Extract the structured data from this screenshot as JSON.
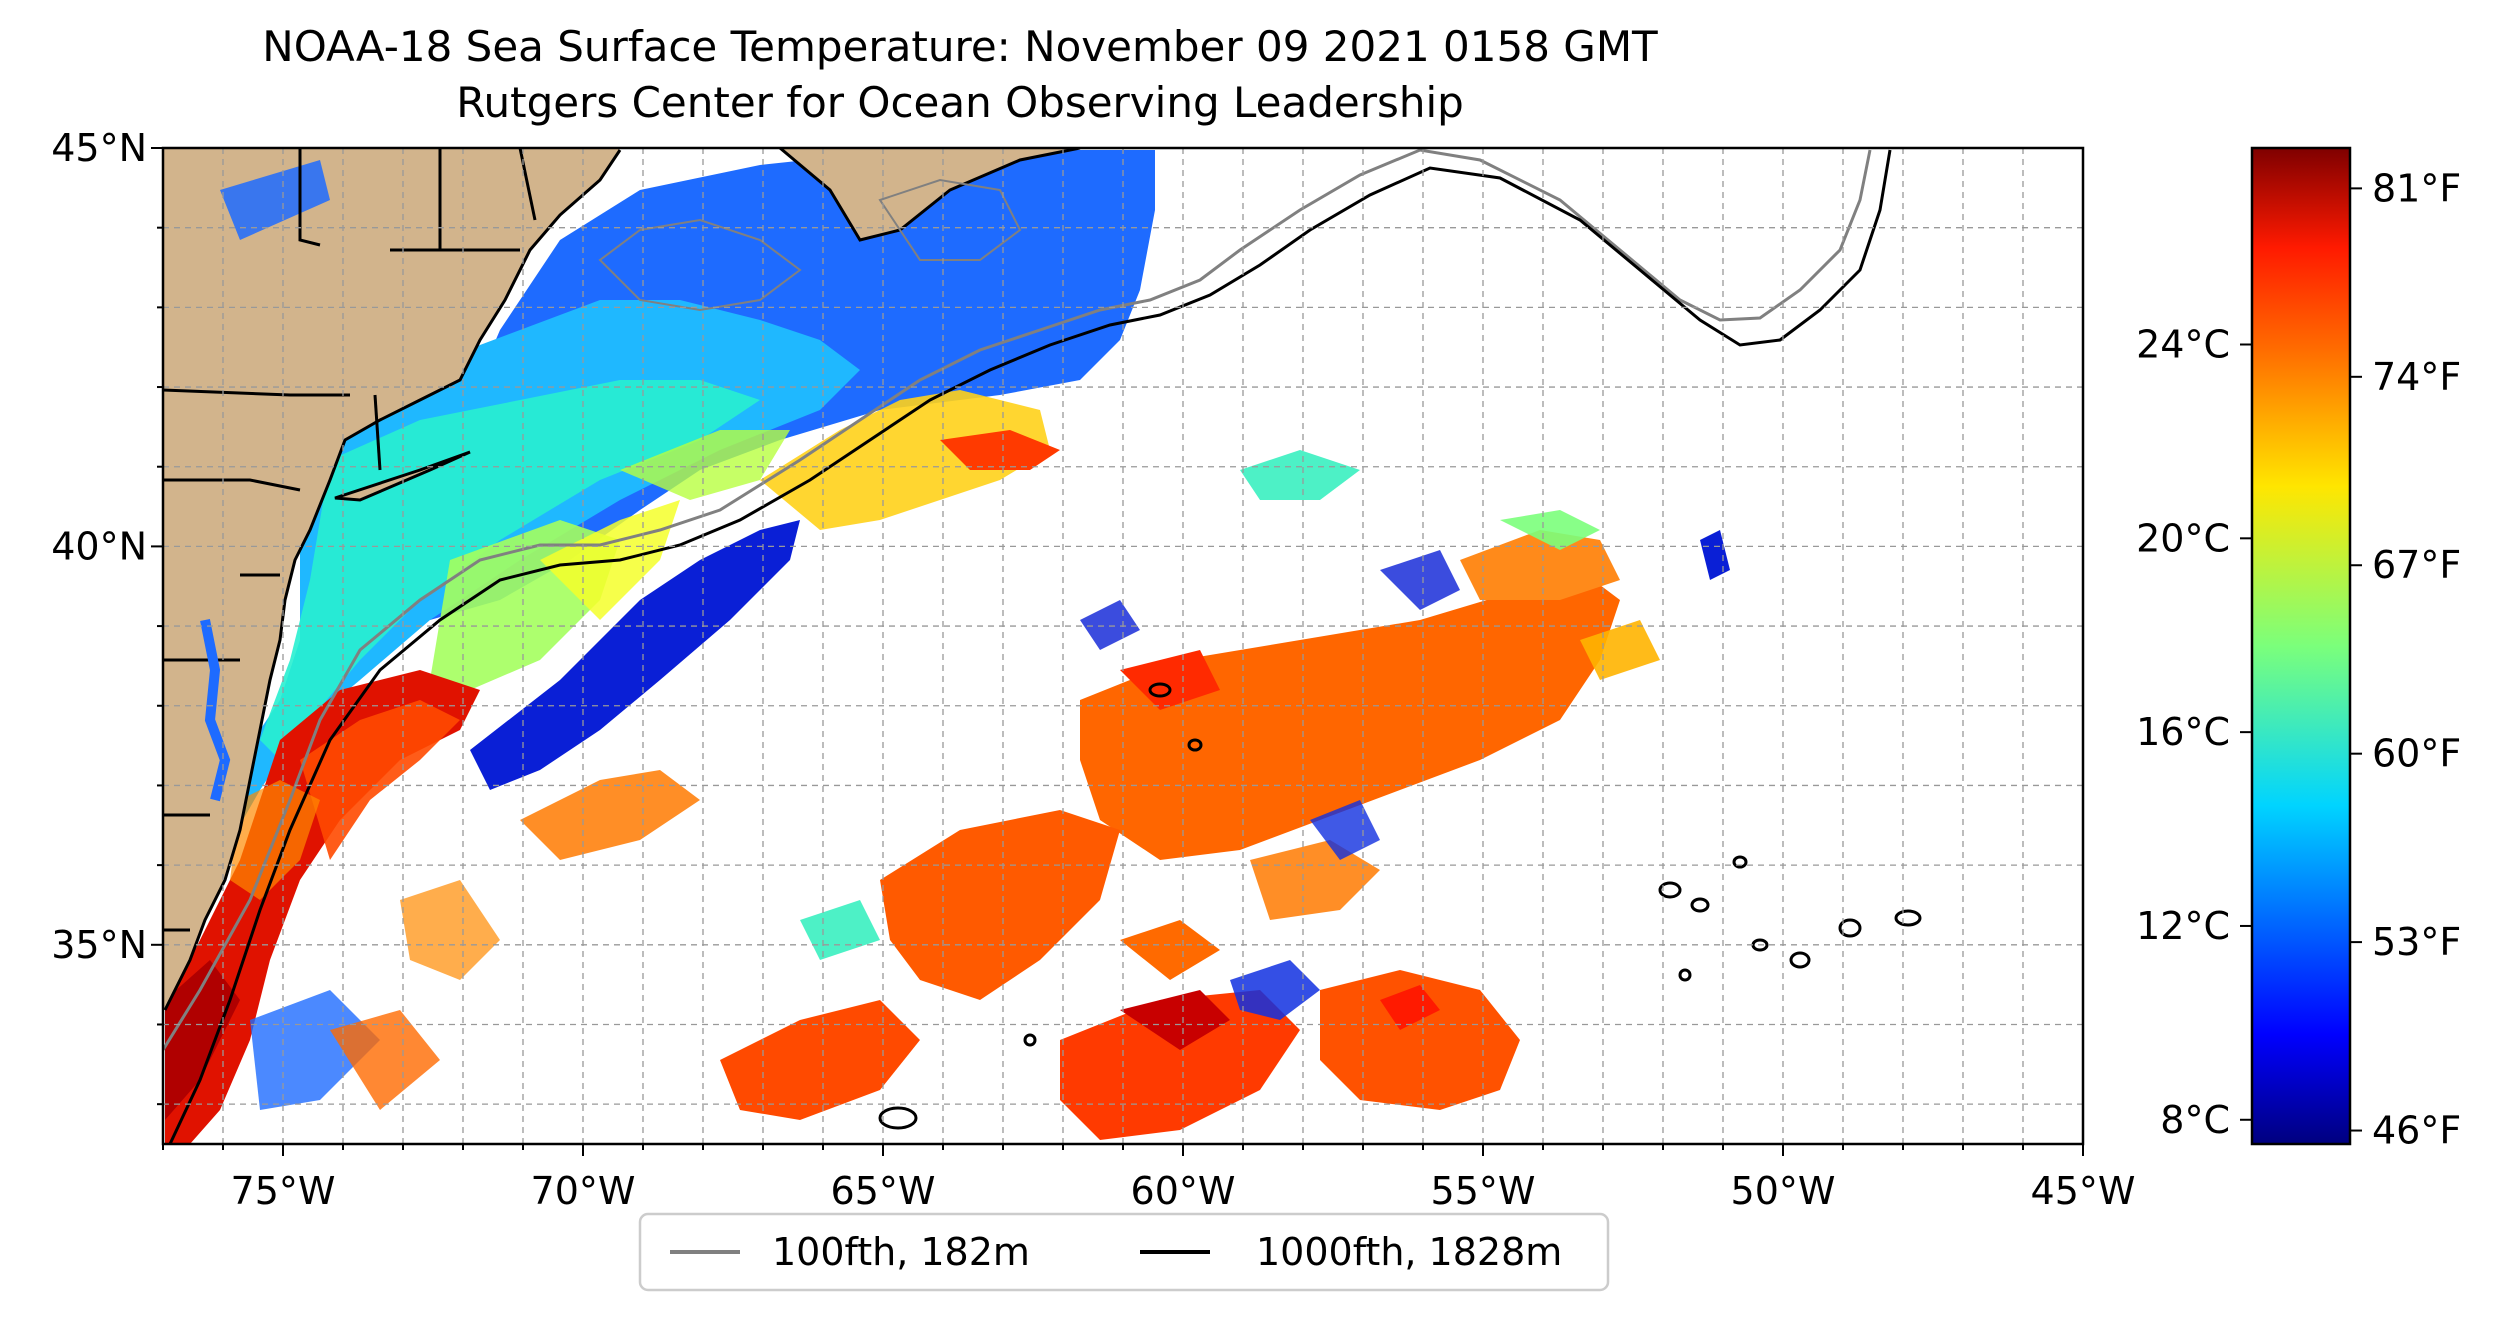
{
  "title": "NOAA-18 Sea Surface Temperature: November 09 2021 0158 GMT",
  "subtitle": "Rutgers Center for Ocean Observing Leadership",
  "map": {
    "lon_range": [
      -77,
      -45
    ],
    "lat_range": [
      32.5,
      45
    ],
    "gridlines": "dashed, every 1 degree",
    "land_color": "#d2b48c",
    "lon_ticks": [
      {
        "value": -75,
        "label": "75°W"
      },
      {
        "value": -70,
        "label": "70°W"
      },
      {
        "value": -65,
        "label": "65°W"
      },
      {
        "value": -60,
        "label": "60°W"
      },
      {
        "value": -55,
        "label": "55°W"
      },
      {
        "value": -50,
        "label": "50°W"
      },
      {
        "value": -45,
        "label": "45°W"
      }
    ],
    "lat_ticks": [
      {
        "value": 45,
        "label": "45°N"
      },
      {
        "value": 40,
        "label": "40°N"
      },
      {
        "value": 35,
        "label": "35°N"
      }
    ]
  },
  "colorbar": {
    "colormap": "jet",
    "range_f": [
      45.5,
      82.5
    ],
    "left_ticks": [
      {
        "value_f": 75.2,
        "label": "24°C"
      },
      {
        "value_f": 68.0,
        "label": "20°C"
      },
      {
        "value_f": 60.8,
        "label": "16°C"
      },
      {
        "value_f": 53.6,
        "label": "12°C"
      },
      {
        "value_f": 46.4,
        "label": "8°C"
      }
    ],
    "right_ticks": [
      {
        "value_f": 81,
        "label": "81°F"
      },
      {
        "value_f": 74,
        "label": "74°F"
      },
      {
        "value_f": 67,
        "label": "67°F"
      },
      {
        "value_f": 60,
        "label": "60°F"
      },
      {
        "value_f": 53,
        "label": "53°F"
      },
      {
        "value_f": 46,
        "label": "46°F"
      }
    ]
  },
  "legend": {
    "placement": "bottom-center",
    "items": [
      {
        "label": "100fth, 182m",
        "color": "#808080"
      },
      {
        "label": "1000fth, 1828m",
        "color": "#000000"
      }
    ]
  }
}
